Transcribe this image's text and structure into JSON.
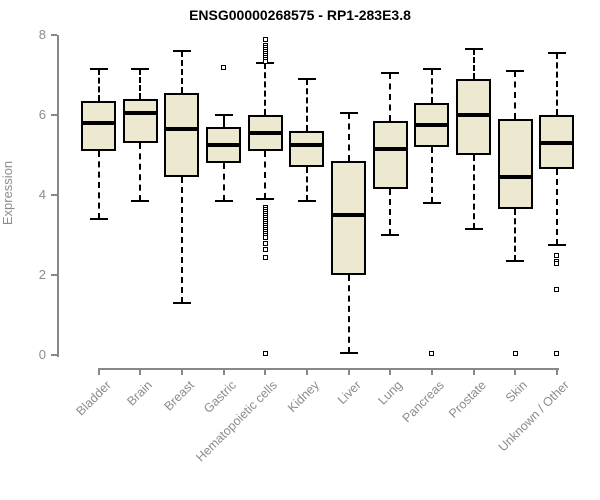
{
  "colors": {
    "box_fill": "#EDE8D0",
    "box_border": "#000000",
    "median": "#000000",
    "whisker": "#000000",
    "axis": "#878787",
    "tick_text": "#8c8c8c",
    "title_text": "#000000",
    "background": "#ffffff"
  },
  "chart_data": {
    "type": "box",
    "title": "ENSG00000268575 - RP1-283E3.8",
    "xlabel": "",
    "ylabel": "Expression",
    "ylim": [
      0,
      8
    ],
    "yticks": [
      0,
      2,
      4,
      6,
      8
    ],
    "grid": false,
    "legend": "none",
    "categories": [
      "Bladder",
      "Brain",
      "Breast",
      "Gastric",
      "Hematopoietic cells",
      "Kidney",
      "Liver",
      "Lung",
      "Pancreas",
      "Prostate",
      "Skin",
      "Unknown / Other"
    ],
    "series": [
      {
        "label": "Bladder",
        "whisker_low": 3.4,
        "q1": 5.1,
        "median": 5.8,
        "q3": 6.35,
        "whisker_high": 7.15,
        "outliers": []
      },
      {
        "label": "Brain",
        "whisker_low": 3.85,
        "q1": 5.3,
        "median": 6.05,
        "q3": 6.4,
        "whisker_high": 7.15,
        "outliers": []
      },
      {
        "label": "Breast",
        "whisker_low": 1.3,
        "q1": 4.45,
        "median": 5.65,
        "q3": 6.55,
        "whisker_high": 7.6,
        "outliers": []
      },
      {
        "label": "Gastric",
        "whisker_low": 3.85,
        "q1": 4.8,
        "median": 5.25,
        "q3": 5.7,
        "whisker_high": 6.0,
        "outliers": [
          7.2
        ]
      },
      {
        "label": "Hematopoietic cells",
        "whisker_low": 3.9,
        "q1": 5.1,
        "median": 5.55,
        "q3": 6.0,
        "whisker_high": 7.3,
        "outliers": [
          7.9,
          7.75,
          7.7,
          7.65,
          7.6,
          7.55,
          7.5,
          7.45,
          7.4,
          7.35,
          3.7,
          3.65,
          3.6,
          3.55,
          3.5,
          3.45,
          3.4,
          3.35,
          3.3,
          3.25,
          3.2,
          3.15,
          3.1,
          3.05,
          3.0,
          2.95,
          2.8,
          2.65,
          2.45,
          0.05
        ]
      },
      {
        "label": "Kidney",
        "whisker_low": 3.85,
        "q1": 4.7,
        "median": 5.25,
        "q3": 5.6,
        "whisker_high": 6.9,
        "outliers": []
      },
      {
        "label": "Liver",
        "whisker_low": 0.05,
        "q1": 2.0,
        "median": 3.5,
        "q3": 4.85,
        "whisker_high": 6.05,
        "outliers": []
      },
      {
        "label": "Lung",
        "whisker_low": 3.0,
        "q1": 4.15,
        "median": 5.15,
        "q3": 5.85,
        "whisker_high": 7.05,
        "outliers": []
      },
      {
        "label": "Pancreas",
        "whisker_low": 3.8,
        "q1": 5.2,
        "median": 5.75,
        "q3": 6.3,
        "whisker_high": 7.15,
        "outliers": [
          0.05
        ]
      },
      {
        "label": "Prostate",
        "whisker_low": 3.15,
        "q1": 5.0,
        "median": 6.0,
        "q3": 6.9,
        "whisker_high": 7.65,
        "outliers": []
      },
      {
        "label": "Skin",
        "whisker_low": 2.35,
        "q1": 3.65,
        "median": 4.45,
        "q3": 5.9,
        "whisker_high": 7.1,
        "outliers": [
          0.05
        ]
      },
      {
        "label": "Unknown / Other",
        "whisker_low": 2.75,
        "q1": 4.65,
        "median": 5.3,
        "q3": 6.0,
        "whisker_high": 7.55,
        "outliers": [
          2.5,
          2.35,
          2.3,
          1.65,
          0.05
        ]
      }
    ]
  }
}
